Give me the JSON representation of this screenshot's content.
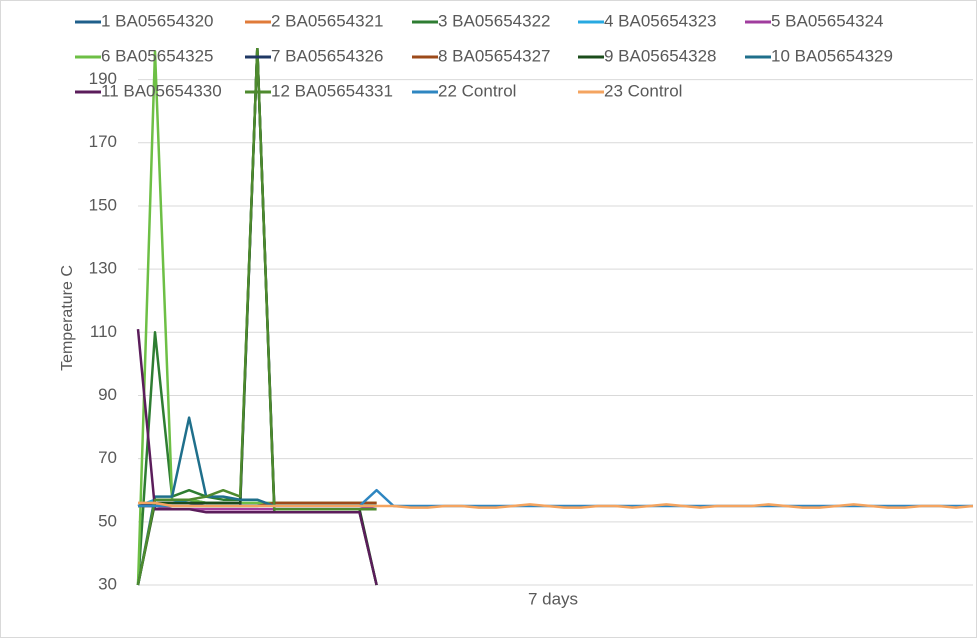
{
  "chart_data": {
    "type": "line",
    "y_label": "Temperature C",
    "x_label": "7 days",
    "ylim": [
      30,
      200
    ],
    "yticks": [
      30,
      50,
      70,
      90,
      110,
      130,
      150,
      170,
      190
    ],
    "grid": true,
    "categories": [
      null,
      null,
      null,
      null,
      null,
      null,
      null,
      null,
      null,
      null,
      null,
      null,
      null,
      null,
      null,
      null,
      null,
      null,
      null,
      null,
      null,
      null,
      null,
      null,
      null,
      null,
      null,
      null,
      null,
      null,
      null,
      null,
      null,
      null,
      null,
      null,
      null,
      null,
      null,
      null,
      null,
      null,
      null,
      null,
      null,
      null,
      null,
      null,
      null,
      null
    ],
    "series": [
      {
        "name": "1 BA05654320",
        "color": "#1f5f8b",
        "values": [
          30,
          57,
          57,
          57,
          56,
          56,
          56,
          56,
          55,
          55,
          55,
          55,
          55,
          55,
          55,
          null,
          null,
          null,
          null,
          null,
          null,
          null,
          null,
          null,
          null,
          null,
          null,
          null,
          null,
          null,
          null,
          null,
          null,
          null,
          null,
          null,
          null,
          null,
          null,
          null,
          null,
          null,
          null,
          null,
          null,
          null,
          null,
          null,
          null,
          null
        ]
      },
      {
        "name": "2 BA05654321",
        "color": "#e07b39",
        "values": [
          55,
          55,
          55,
          55,
          55,
          55,
          55,
          55,
          56,
          56,
          56,
          56,
          56,
          56,
          56,
          null,
          null,
          null,
          null,
          null,
          null,
          null,
          null,
          null,
          null,
          null,
          null,
          null,
          null,
          null,
          null,
          null,
          null,
          null,
          null,
          null,
          null,
          null,
          null,
          null,
          null,
          null,
          null,
          null,
          null,
          null,
          null,
          null,
          null,
          null
        ]
      },
      {
        "name": "3 BA05654322",
        "color": "#2e7d32",
        "values": [
          30,
          110,
          58,
          60,
          58,
          57,
          57,
          200,
          53,
          53,
          53,
          53,
          53,
          53,
          30,
          null,
          null,
          null,
          null,
          null,
          null,
          null,
          null,
          null,
          null,
          null,
          null,
          null,
          null,
          null,
          null,
          null,
          null,
          null,
          null,
          null,
          null,
          null,
          null,
          null,
          null,
          null,
          null,
          null,
          null,
          null,
          null,
          null,
          null,
          null
        ]
      },
      {
        "name": "4 BA05654323",
        "color": "#27a9e1",
        "values": [
          55,
          57,
          57,
          56,
          56,
          56,
          56,
          56,
          55,
          55,
          55,
          55,
          55,
          55,
          55,
          null,
          null,
          null,
          null,
          null,
          null,
          null,
          null,
          null,
          null,
          null,
          null,
          null,
          null,
          null,
          null,
          null,
          null,
          null,
          null,
          null,
          null,
          null,
          null,
          null,
          null,
          null,
          null,
          null,
          null,
          null,
          null,
          null,
          null,
          null
        ]
      },
      {
        "name": "5 BA05654324",
        "color": "#a03c9e",
        "values": [
          55,
          55,
          54,
          54,
          54,
          54,
          54,
          54,
          54,
          54,
          54,
          54,
          54,
          54,
          55,
          null,
          null,
          null,
          null,
          null,
          null,
          null,
          null,
          null,
          null,
          null,
          null,
          null,
          null,
          null,
          null,
          null,
          null,
          null,
          null,
          null,
          null,
          null,
          null,
          null,
          null,
          null,
          null,
          null,
          null,
          null,
          null,
          null,
          null,
          null
        ]
      },
      {
        "name": "6 BA05654325",
        "color": "#6dbf45",
        "values": [
          30,
          199,
          57,
          57,
          56,
          56,
          56,
          56,
          56,
          56,
          56,
          56,
          56,
          56,
          56,
          null,
          null,
          null,
          null,
          null,
          null,
          null,
          null,
          null,
          null,
          null,
          null,
          null,
          null,
          null,
          null,
          null,
          null,
          null,
          null,
          null,
          null,
          null,
          null,
          null,
          null,
          null,
          null,
          null,
          null,
          null,
          null,
          null,
          null,
          null
        ]
      },
      {
        "name": "7 BA05654326",
        "color": "#1f3864",
        "values": [
          55,
          56,
          56,
          56,
          55,
          55,
          55,
          200,
          55,
          55,
          55,
          55,
          55,
          55,
          55,
          null,
          null,
          null,
          null,
          null,
          null,
          null,
          null,
          null,
          null,
          null,
          null,
          null,
          null,
          null,
          null,
          null,
          null,
          null,
          null,
          null,
          null,
          null,
          null,
          null,
          null,
          null,
          null,
          null,
          null,
          null,
          null,
          null,
          null,
          null
        ]
      },
      {
        "name": "8 BA05654327",
        "color": "#9c4a1a",
        "values": [
          55,
          55,
          55,
          55,
          55,
          55,
          55,
          55,
          56,
          56,
          56,
          56,
          56,
          56,
          56,
          null,
          null,
          null,
          null,
          null,
          null,
          null,
          null,
          null,
          null,
          null,
          null,
          null,
          null,
          null,
          null,
          null,
          null,
          null,
          null,
          null,
          null,
          null,
          null,
          null,
          null,
          null,
          null,
          null,
          null,
          null,
          null,
          null,
          null,
          null
        ]
      },
      {
        "name": "9 BA05654328",
        "color": "#1b4d1b",
        "values": [
          30,
          56,
          56,
          56,
          56,
          56,
          56,
          200,
          54,
          54,
          54,
          54,
          54,
          54,
          30,
          null,
          null,
          null,
          null,
          null,
          null,
          null,
          null,
          null,
          null,
          null,
          null,
          null,
          null,
          null,
          null,
          null,
          null,
          null,
          null,
          null,
          null,
          null,
          null,
          null,
          null,
          null,
          null,
          null,
          null,
          null,
          null,
          null,
          null,
          null
        ]
      },
      {
        "name": "10 BA05654329",
        "color": "#1f6f8b",
        "values": [
          30,
          58,
          58,
          83,
          58,
          58,
          57,
          57,
          55,
          55,
          55,
          55,
          55,
          55,
          55,
          null,
          null,
          null,
          null,
          null,
          null,
          null,
          null,
          null,
          null,
          null,
          null,
          null,
          null,
          null,
          null,
          null,
          null,
          null,
          null,
          null,
          null,
          null,
          null,
          null,
          null,
          null,
          null,
          null,
          null,
          null,
          null,
          null,
          null,
          null
        ]
      },
      {
        "name": "11 BA05654330",
        "color": "#5b1d5b",
        "values": [
          111,
          54,
          54,
          54,
          53,
          53,
          53,
          53,
          53,
          53,
          53,
          53,
          53,
          53,
          30,
          null,
          null,
          null,
          null,
          null,
          null,
          null,
          null,
          null,
          null,
          null,
          null,
          null,
          null,
          null,
          null,
          null,
          null,
          null,
          null,
          null,
          null,
          null,
          null,
          null,
          null,
          null,
          null,
          null,
          null,
          null,
          null,
          null,
          null,
          null
        ]
      },
      {
        "name": "12 BA05654331",
        "color": "#4e8a2e",
        "values": [
          30,
          57,
          57,
          57,
          58,
          60,
          58,
          200,
          54,
          54,
          54,
          54,
          54,
          54,
          54,
          null,
          null,
          null,
          null,
          null,
          null,
          null,
          null,
          null,
          null,
          null,
          null,
          null,
          null,
          null,
          null,
          null,
          null,
          null,
          null,
          null,
          null,
          null,
          null,
          null,
          null,
          null,
          null,
          null,
          null,
          null,
          null,
          null,
          null,
          null
        ]
      },
      {
        "name": "22 Control",
        "color": "#2e86c1",
        "values": [
          55,
          55,
          55,
          55,
          55,
          55,
          55,
          55,
          55,
          55,
          55,
          55,
          55,
          55,
          60,
          55,
          55,
          55,
          55,
          55,
          55,
          55,
          55,
          55,
          55,
          55,
          55,
          55,
          55,
          55,
          55,
          55,
          55,
          55,
          55,
          55,
          55,
          55,
          55,
          55,
          55,
          55,
          55,
          55,
          55,
          55,
          55,
          55,
          55,
          55
        ]
      },
      {
        "name": "23 Control",
        "color": "#f4a460",
        "values": [
          56,
          56,
          55,
          55,
          55,
          55,
          55,
          55,
          55,
          55,
          55,
          55,
          55,
          55,
          55,
          55,
          54.5,
          54.5,
          55,
          55,
          54.5,
          54.5,
          55,
          55.5,
          55,
          54.5,
          54.5,
          55,
          55,
          54.5,
          55,
          55.5,
          55,
          54.5,
          55,
          55,
          55,
          55.5,
          55,
          54.5,
          54.5,
          55,
          55.5,
          55,
          54.5,
          54.5,
          55,
          55,
          54.5,
          55
        ]
      }
    ]
  }
}
